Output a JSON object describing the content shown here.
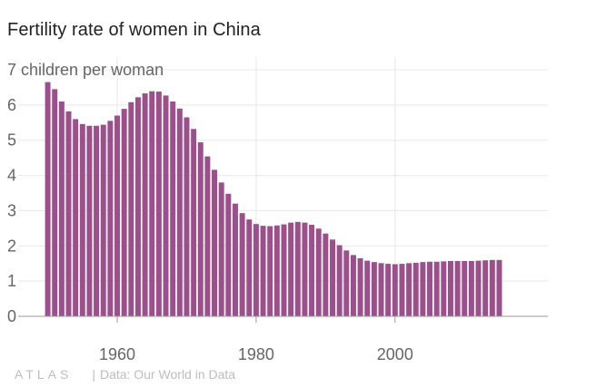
{
  "page": {
    "title": "Fertility rate of women in China",
    "logo": "ATLAS",
    "source": "Data: Our World in Data"
  },
  "colors": {
    "bar": "#9c4f8a",
    "grid": "#e8e8e8",
    "axis": "#999999",
    "text": "#666666"
  },
  "chart_data": {
    "type": "bar",
    "title": "Fertility rate of women in China",
    "xlabel": "",
    "ylabel": "children per woman",
    "y_unit_label": "7 children per woman",
    "xlim": [
      1946,
      2022
    ],
    "ylim": [
      0,
      7
    ],
    "x_ticks": [
      1960,
      1980,
      2000
    ],
    "y_ticks": [
      0,
      1,
      2,
      3,
      4,
      5,
      6,
      7
    ],
    "grid": true,
    "x": [
      1950,
      1951,
      1952,
      1953,
      1954,
      1955,
      1956,
      1957,
      1958,
      1959,
      1960,
      1961,
      1962,
      1963,
      1964,
      1965,
      1966,
      1967,
      1968,
      1969,
      1970,
      1971,
      1972,
      1973,
      1974,
      1975,
      1976,
      1977,
      1978,
      1979,
      1980,
      1981,
      1982,
      1983,
      1984,
      1985,
      1986,
      1987,
      1988,
      1989,
      1990,
      1991,
      1992,
      1993,
      1994,
      1995,
      1996,
      1997,
      1998,
      1999,
      2000,
      2001,
      2002,
      2003,
      2004,
      2005,
      2006,
      2007,
      2008,
      2009,
      2010,
      2011,
      2012,
      2013,
      2014,
      2015
    ],
    "values": [
      6.65,
      6.45,
      6.1,
      5.82,
      5.6,
      5.46,
      5.41,
      5.41,
      5.44,
      5.55,
      5.7,
      5.89,
      6.08,
      6.22,
      6.33,
      6.39,
      6.38,
      6.27,
      6.1,
      5.9,
      5.65,
      5.32,
      4.94,
      4.54,
      4.16,
      3.8,
      3.48,
      3.2,
      2.93,
      2.75,
      2.62,
      2.57,
      2.56,
      2.58,
      2.61,
      2.66,
      2.68,
      2.66,
      2.6,
      2.49,
      2.35,
      2.18,
      2.02,
      1.87,
      1.74,
      1.65,
      1.58,
      1.54,
      1.51,
      1.49,
      1.48,
      1.49,
      1.51,
      1.52,
      1.54,
      1.55,
      1.55,
      1.56,
      1.57,
      1.57,
      1.57,
      1.57,
      1.58,
      1.59,
      1.6,
      1.6
    ]
  }
}
